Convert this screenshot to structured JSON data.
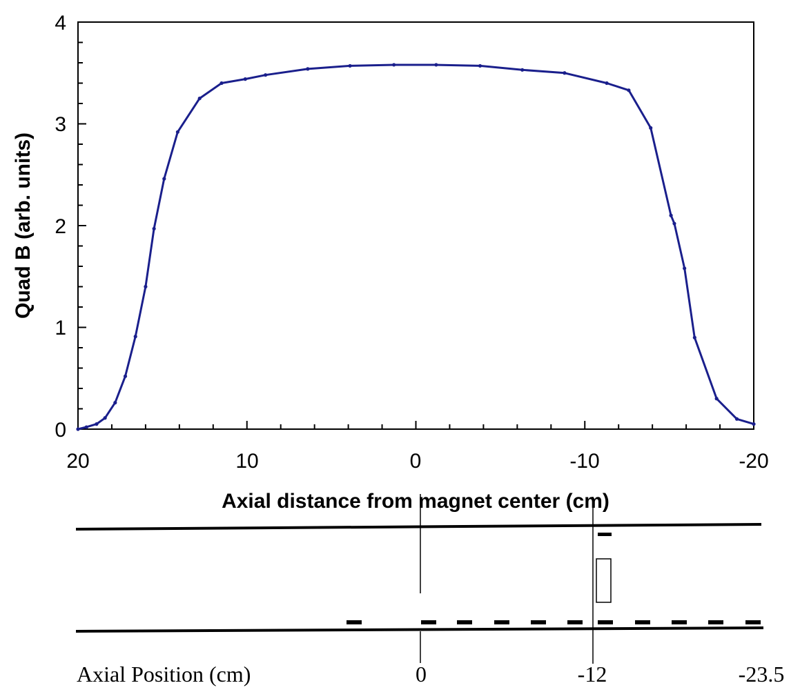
{
  "chart_data": {
    "type": "line",
    "title": "",
    "xlabel": "Axial distance from magnet center (cm)",
    "ylabel": "Quad B (arb. units)",
    "xlim": [
      20,
      -20
    ],
    "ylim": [
      0,
      4
    ],
    "x_reversed": true,
    "grid": false,
    "legend": "none",
    "line_color": "#1a1f8c",
    "x_tick_labels": [
      "20",
      "10",
      "0",
      "-10",
      "-20"
    ],
    "y_tick_labels": [
      "0",
      "1",
      "2",
      "3",
      "4"
    ],
    "series": [
      {
        "x": [
          20.0,
          19.5,
          18.9,
          18.4,
          17.8,
          17.2,
          16.6,
          16.0,
          15.5,
          14.9,
          14.1,
          12.8,
          11.5,
          10.1,
          8.9,
          6.4,
          3.9,
          1.3,
          -1.2,
          -3.8,
          -6.3,
          -8.8,
          -11.3,
          -12.6,
          -13.9,
          -15.1,
          -15.3,
          -15.9,
          -16.5,
          -17.8,
          -19.0,
          -20.0
        ],
        "y": [
          0.0,
          0.02,
          0.05,
          0.11,
          0.26,
          0.52,
          0.91,
          1.4,
          1.97,
          2.46,
          2.92,
          3.25,
          3.4,
          3.44,
          3.48,
          3.54,
          3.57,
          3.58,
          3.58,
          3.57,
          3.53,
          3.5,
          3.4,
          3.33,
          2.96,
          2.1,
          2.02,
          1.58,
          0.9,
          0.3,
          0.1,
          0.05
        ]
      }
    ]
  },
  "schematic": {
    "position_label": "Axial Position (cm)",
    "markers": [
      {
        "label": "0",
        "value": 0
      },
      {
        "label": "-12",
        "value": -12
      },
      {
        "label": "-23.5",
        "value": -23.5
      }
    ]
  }
}
